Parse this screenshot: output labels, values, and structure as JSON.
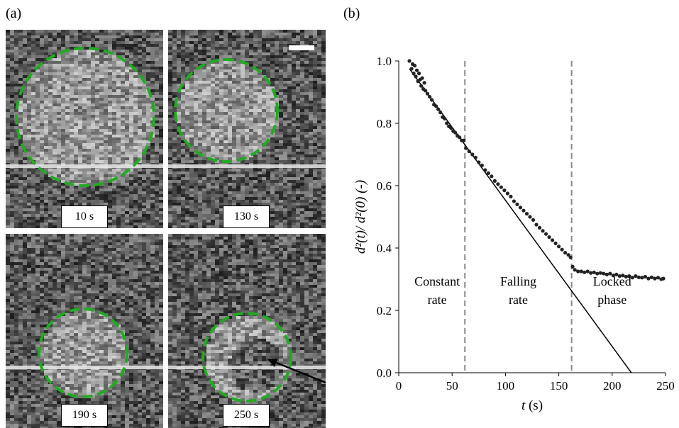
{
  "panels": {
    "a_label": "(a)",
    "b_label": "(b)"
  },
  "images": [
    {
      "time": "10 s",
      "circle_color": "#22aa22"
    },
    {
      "time": "130 s",
      "circle_color": "#22aa22"
    },
    {
      "time": "190 s",
      "circle_color": "#22aa22"
    },
    {
      "time": "250 s",
      "circle_color": "#22aa22"
    }
  ],
  "chart_data": {
    "type": "scatter",
    "ylabel": "d²(t)/ d²(0) (-)",
    "xlabel_italic": "t",
    "xlabel_unit": "(s)",
    "xlim": [
      0,
      250
    ],
    "ylim": [
      0.0,
      1.0
    ],
    "xticks": [
      "0",
      "50",
      "100",
      "150",
      "200",
      "250"
    ],
    "yticks": [
      "0.0",
      "0.2",
      "0.4",
      "0.6",
      "0.8",
      "1.0"
    ],
    "vlines": [
      62,
      162
    ],
    "fit_line": {
      "x": [
        10,
        218
      ],
      "y": [
        0.975,
        0.0
      ]
    },
    "regions": [
      {
        "line1": "Constant",
        "line2": "rate",
        "x": 36
      },
      {
        "line1": "Falling",
        "line2": "rate",
        "x": 112
      },
      {
        "line1": "Locked",
        "line2": "phase",
        "x": 200
      }
    ],
    "series": [
      {
        "x": [
          10,
          12,
          13,
          14,
          15,
          16,
          17,
          18,
          19,
          20,
          21,
          22,
          23,
          24,
          25,
          27,
          29,
          31,
          33,
          35,
          37,
          39,
          41,
          43,
          45,
          47,
          49,
          51,
          53,
          55,
          57,
          59,
          61,
          63,
          66,
          69,
          72,
          75,
          78,
          81,
          84,
          87,
          90,
          93,
          96,
          99,
          102,
          105,
          108,
          111,
          114,
          117,
          120,
          123,
          126,
          129,
          132,
          135,
          138,
          141,
          144,
          147,
          150,
          153,
          156,
          159,
          161,
          163,
          165,
          168,
          171,
          174,
          177,
          180,
          183,
          186,
          189,
          192,
          195,
          198,
          201,
          204,
          207,
          210,
          213,
          216,
          219,
          222,
          225,
          228,
          231,
          234,
          237,
          240,
          243,
          246,
          248
        ],
        "y": [
          1.0,
          0.975,
          0.99,
          0.96,
          0.985,
          0.95,
          0.97,
          0.935,
          0.96,
          0.94,
          0.92,
          0.945,
          0.91,
          0.93,
          0.905,
          0.895,
          0.885,
          0.875,
          0.86,
          0.855,
          0.845,
          0.835,
          0.82,
          0.815,
          0.8,
          0.79,
          0.785,
          0.775,
          0.77,
          0.76,
          0.755,
          0.745,
          0.745,
          0.72,
          0.71,
          0.7,
          0.69,
          0.675,
          0.665,
          0.65,
          0.64,
          0.63,
          0.615,
          0.605,
          0.595,
          0.585,
          0.575,
          0.565,
          0.55,
          0.54,
          0.53,
          0.52,
          0.51,
          0.5,
          0.49,
          0.475,
          0.465,
          0.455,
          0.445,
          0.435,
          0.425,
          0.415,
          0.405,
          0.395,
          0.385,
          0.378,
          0.37,
          0.34,
          0.33,
          0.325,
          0.325,
          0.322,
          0.325,
          0.32,
          0.322,
          0.318,
          0.32,
          0.318,
          0.315,
          0.318,
          0.312,
          0.315,
          0.31,
          0.312,
          0.308,
          0.31,
          0.305,
          0.31,
          0.306,
          0.305,
          0.308,
          0.302,
          0.306,
          0.302,
          0.305,
          0.3,
          0.302
        ]
      }
    ]
  }
}
